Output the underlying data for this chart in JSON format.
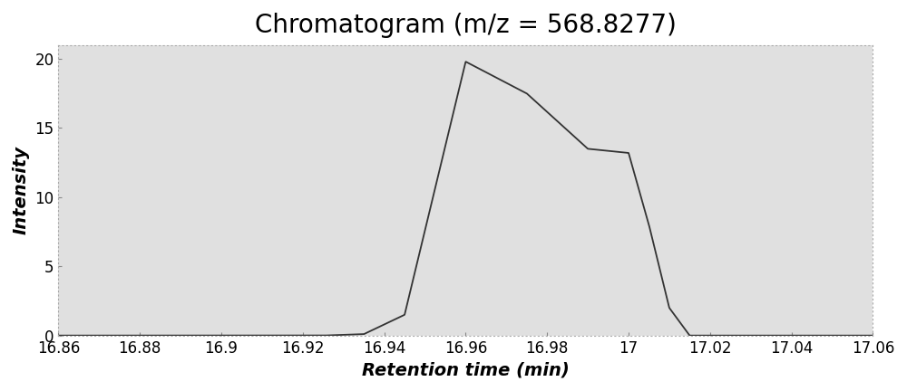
{
  "title": "Chromatogram (m/z = 568.8277)",
  "xlabel": "Retention time (min)",
  "ylabel": "Intensity",
  "xlim": [
    16.86,
    17.06
  ],
  "ylim": [
    0,
    21
  ],
  "yticks": [
    0,
    5,
    10,
    15,
    20
  ],
  "xticks": [
    16.86,
    16.88,
    16.9,
    16.92,
    16.94,
    16.96,
    16.98,
    17.0,
    17.02,
    17.04,
    17.06
  ],
  "xtick_labels": [
    "16.86",
    "16.88",
    "16.9",
    "16.92",
    "16.94",
    "16.96",
    "16.98",
    "17",
    "17.02",
    "17.04",
    "17.06"
  ],
  "peak_x": [
    16.86,
    16.925,
    16.935,
    16.945,
    16.96,
    16.975,
    16.99,
    17.0,
    17.005,
    17.01,
    17.015,
    17.06
  ],
  "peak_y": [
    0.0,
    0.0,
    0.1,
    1.5,
    19.8,
    17.5,
    13.5,
    13.2,
    8.0,
    2.0,
    0.0,
    0.0
  ],
  "line_color": "#333333",
  "fig_bg_color": "#ffffff",
  "plot_bg_color": "#e0e0e0",
  "title_fontsize": 20,
  "label_fontsize": 14,
  "tick_fontsize": 12
}
